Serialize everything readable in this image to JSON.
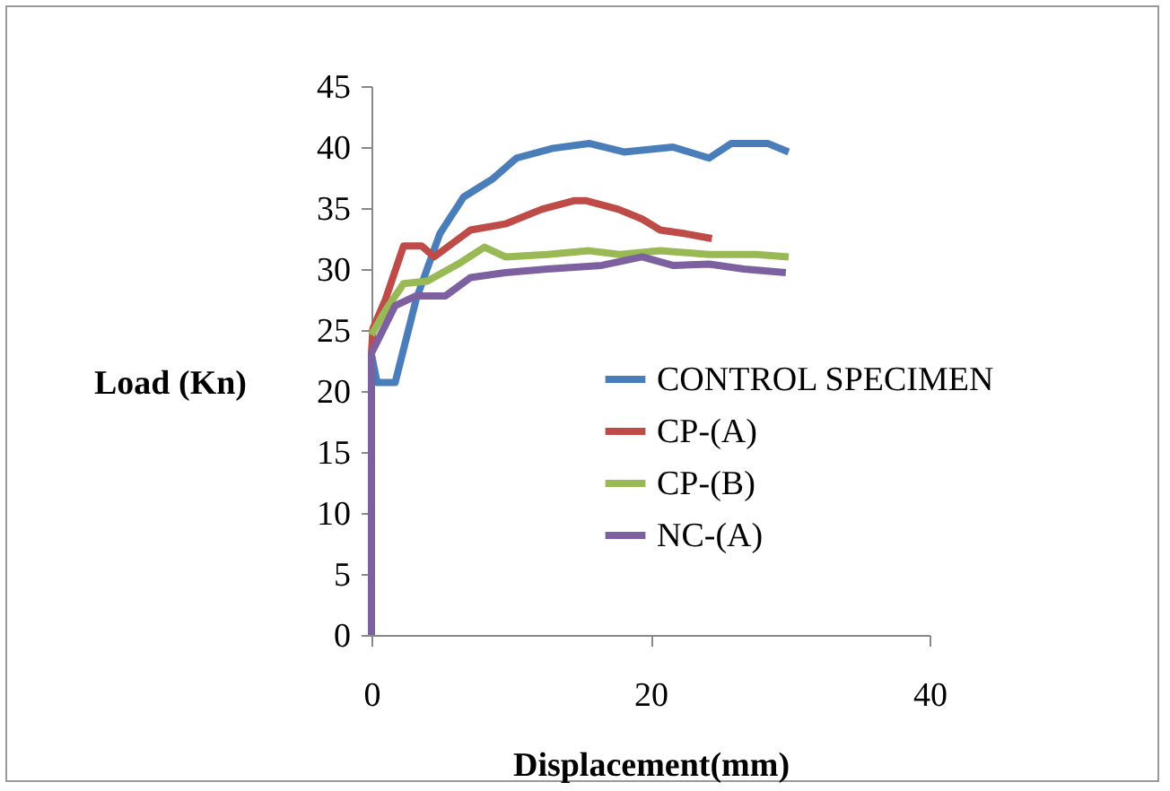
{
  "chart_data": {
    "type": "line",
    "xlabel": "Displacement(mm)",
    "ylabel": "Load (Kn)",
    "xlim": [
      0,
      40
    ],
    "xticks": [
      0,
      20,
      40
    ],
    "ylim": [
      0,
      45
    ],
    "yticks": [
      0,
      5,
      10,
      15,
      20,
      25,
      30,
      35,
      40,
      45
    ],
    "grid": false,
    "legend": "right",
    "marker": "none",
    "line_style": "solid",
    "series": [
      {
        "name": "CONTROL SPECIMEN",
        "color": "#4a7ebb",
        "x": [
          0,
          0.4,
          1.7,
          3.2,
          4.9,
          6.6,
          8.7,
          10.4,
          13,
          15.6,
          18.1,
          21.6,
          24.2,
          25.8,
          28.4,
          29.9
        ],
        "values": [
          23,
          20.7,
          20.7,
          27.5,
          32.9,
          35.9,
          37.4,
          39.1,
          39.9,
          40.3,
          39.6,
          40,
          39.1,
          40.3,
          40.3,
          39.6
        ]
      },
      {
        "name": "CP-(A)",
        "color": "#be4b48",
        "x": [
          0,
          0.1,
          1,
          2.3,
          3.6,
          4.5,
          7.1,
          9.6,
          12.2,
          14.5,
          15.4,
          17.7,
          19.4,
          20.7,
          22.5,
          24.4
        ],
        "values": [
          23,
          25.1,
          27.5,
          31.9,
          31.9,
          31,
          33.2,
          33.7,
          34.9,
          35.6,
          35.6,
          34.9,
          34.1,
          33.2,
          32.9,
          32.5
        ]
      },
      {
        "name": "CP-(B)",
        "color": "#98b954",
        "x": [
          0,
          1,
          2.3,
          4,
          6.2,
          8.1,
          9.6,
          12.6,
          15.6,
          17.8,
          20.7,
          24.2,
          27.6,
          29.9
        ],
        "values": [
          24.6,
          26.6,
          28.8,
          29,
          30.4,
          31.8,
          31,
          31.2,
          31.5,
          31.2,
          31.5,
          31.2,
          31.2,
          31
        ]
      },
      {
        "name": "NC-(A)",
        "color": "#7d60a0",
        "x": [
          0,
          0,
          1.7,
          3.2,
          5.3,
          7.1,
          9.6,
          12.6,
          16.5,
          19.4,
          21.6,
          24.2,
          26.7,
          29.7
        ],
        "values": [
          0,
          23.1,
          27,
          27.8,
          27.8,
          29.3,
          29.7,
          30,
          30.3,
          31,
          30.3,
          30.4,
          30,
          29.7
        ]
      }
    ]
  }
}
